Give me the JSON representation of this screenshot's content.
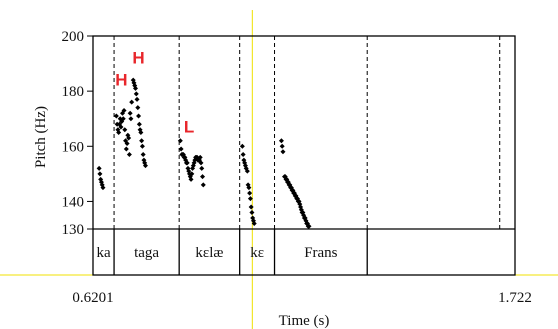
{
  "chart_data": {
    "type": "scatter",
    "title": "",
    "xlabel": "Time (s)",
    "ylabel": "Pitch (Hz)",
    "xlim": [
      0.6201,
      1.722
    ],
    "ylim": [
      130,
      200
    ],
    "x_tick_labels": [
      "0.6201",
      "1.722"
    ],
    "y_ticks": [
      130,
      140,
      160,
      180,
      200
    ],
    "y_tick_labels": [
      "130",
      "140",
      "160",
      "180",
      "200"
    ],
    "boundaries": [
      0.6751,
      0.8451,
      1.0031,
      1.0941,
      1.3361,
      1.6821
    ],
    "intervals": [
      {
        "label": "ka",
        "start": 0.6201,
        "end": 0.6751
      },
      {
        "label": "taga",
        "start": 0.6751,
        "end": 0.8451
      },
      {
        "label": "kɛlæ",
        "start": 0.8451,
        "end": 1.0031
      },
      {
        "label": "kɛ",
        "start": 1.0031,
        "end": 1.0941
      },
      {
        "label": "Frans",
        "start": 1.0941,
        "end": 1.3361
      }
    ],
    "tones": [
      {
        "label": "H",
        "x": 0.6941,
        "y": 182
      },
      {
        "label": "H",
        "x": 0.7391,
        "y": 190
      },
      {
        "label": "L",
        "x": 0.8711,
        "y": 165
      }
    ],
    "cursor_x": 1.0361,
    "series": [
      {
        "points": [
          [
            0.6361,
            152
          ],
          [
            0.6381,
            150
          ],
          [
            0.6401,
            148
          ],
          [
            0.6421,
            147
          ],
          [
            0.6441,
            146
          ],
          [
            0.6461,
            145
          ],
          [
            0.6811,
            171
          ],
          [
            0.6831,
            168
          ],
          [
            0.6851,
            166
          ],
          [
            0.6871,
            165
          ],
          [
            0.6891,
            168
          ],
          [
            0.6911,
            170
          ],
          [
            0.6931,
            167
          ],
          [
            0.6951,
            169
          ],
          [
            0.6971,
            172
          ],
          [
            0.6991,
            170
          ],
          [
            0.7011,
            173
          ],
          [
            0.7031,
            166
          ],
          [
            0.7051,
            162
          ],
          [
            0.7071,
            159
          ],
          [
            0.7091,
            161
          ],
          [
            0.7111,
            164
          ],
          [
            0.7131,
            163
          ],
          [
            0.7151,
            157
          ],
          [
            0.7171,
            172
          ],
          [
            0.7191,
            170
          ],
          [
            0.7211,
            176
          ],
          [
            0.7251,
            184
          ],
          [
            0.7271,
            183
          ],
          [
            0.7291,
            182
          ],
          [
            0.7311,
            181
          ],
          [
            0.7331,
            179
          ],
          [
            0.7351,
            177
          ],
          [
            0.7371,
            174
          ],
          [
            0.7391,
            171
          ],
          [
            0.7411,
            168
          ],
          [
            0.7431,
            166
          ],
          [
            0.7451,
            165
          ],
          [
            0.7471,
            162
          ],
          [
            0.7491,
            160
          ],
          [
            0.7511,
            157
          ],
          [
            0.7531,
            155
          ],
          [
            0.7551,
            154
          ],
          [
            0.7571,
            153
          ],
          [
            0.8481,
            162
          ],
          [
            0.8501,
            159
          ],
          [
            0.8521,
            157
          ],
          [
            0.8541,
            157
          ],
          [
            0.8561,
            157
          ],
          [
            0.8581,
            156
          ],
          [
            0.8601,
            156
          ],
          [
            0.8621,
            155
          ],
          [
            0.8641,
            154
          ],
          [
            0.8661,
            154
          ],
          [
            0.8681,
            152
          ],
          [
            0.8701,
            151
          ],
          [
            0.8721,
            150
          ],
          [
            0.8741,
            149
          ],
          [
            0.8761,
            148
          ],
          [
            0.8781,
            150
          ],
          [
            0.8801,
            152
          ],
          [
            0.8821,
            153
          ],
          [
            0.8841,
            154
          ],
          [
            0.8861,
            155
          ],
          [
            0.8881,
            156
          ],
          [
            0.8901,
            156
          ],
          [
            0.8921,
            156
          ],
          [
            0.8941,
            155
          ],
          [
            0.8961,
            155
          ],
          [
            0.8981,
            155
          ],
          [
            0.9001,
            156
          ],
          [
            0.9021,
            154
          ],
          [
            0.9041,
            152
          ],
          [
            0.9061,
            149
          ],
          [
            0.9081,
            146
          ],
          [
            1.0101,
            160
          ],
          [
            1.0121,
            157
          ],
          [
            1.0141,
            155
          ],
          [
            1.0161,
            154
          ],
          [
            1.0181,
            153
          ],
          [
            1.0201,
            152
          ],
          [
            1.0231,
            151
          ],
          [
            1.0251,
            146
          ],
          [
            1.0271,
            145
          ],
          [
            1.0291,
            143
          ],
          [
            1.0311,
            141
          ],
          [
            1.0331,
            138
          ],
          [
            1.0351,
            136
          ],
          [
            1.0371,
            134
          ],
          [
            1.0391,
            133
          ],
          [
            1.0411,
            132
          ],
          [
            1.1121,
            162
          ],
          [
            1.1141,
            160
          ],
          [
            1.1161,
            158
          ],
          [
            1.1201,
            149
          ],
          [
            1.1221,
            149
          ],
          [
            1.1241,
            148
          ],
          [
            1.1261,
            148
          ],
          [
            1.1281,
            147
          ],
          [
            1.1301,
            147
          ],
          [
            1.1321,
            146
          ],
          [
            1.1341,
            146
          ],
          [
            1.1361,
            145
          ],
          [
            1.1381,
            145
          ],
          [
            1.1401,
            144
          ],
          [
            1.1421,
            144
          ],
          [
            1.1441,
            143
          ],
          [
            1.1461,
            143
          ],
          [
            1.1481,
            142
          ],
          [
            1.1501,
            142
          ],
          [
            1.1521,
            141
          ],
          [
            1.1541,
            141
          ],
          [
            1.1561,
            140
          ],
          [
            1.1581,
            140
          ],
          [
            1.1601,
            139
          ],
          [
            1.1621,
            138
          ],
          [
            1.1641,
            137
          ],
          [
            1.1661,
            136
          ],
          [
            1.1681,
            136
          ],
          [
            1.1701,
            135
          ],
          [
            1.1721,
            134
          ],
          [
            1.1741,
            134
          ],
          [
            1.1761,
            133
          ],
          [
            1.1781,
            132
          ],
          [
            1.1801,
            132
          ],
          [
            1.1821,
            131
          ],
          [
            1.1841,
            131
          ]
        ]
      }
    ],
    "colors": {
      "points": "#000000",
      "tones": "#e8262b",
      "cursor": "#f0e000",
      "frame": "#000000"
    }
  }
}
